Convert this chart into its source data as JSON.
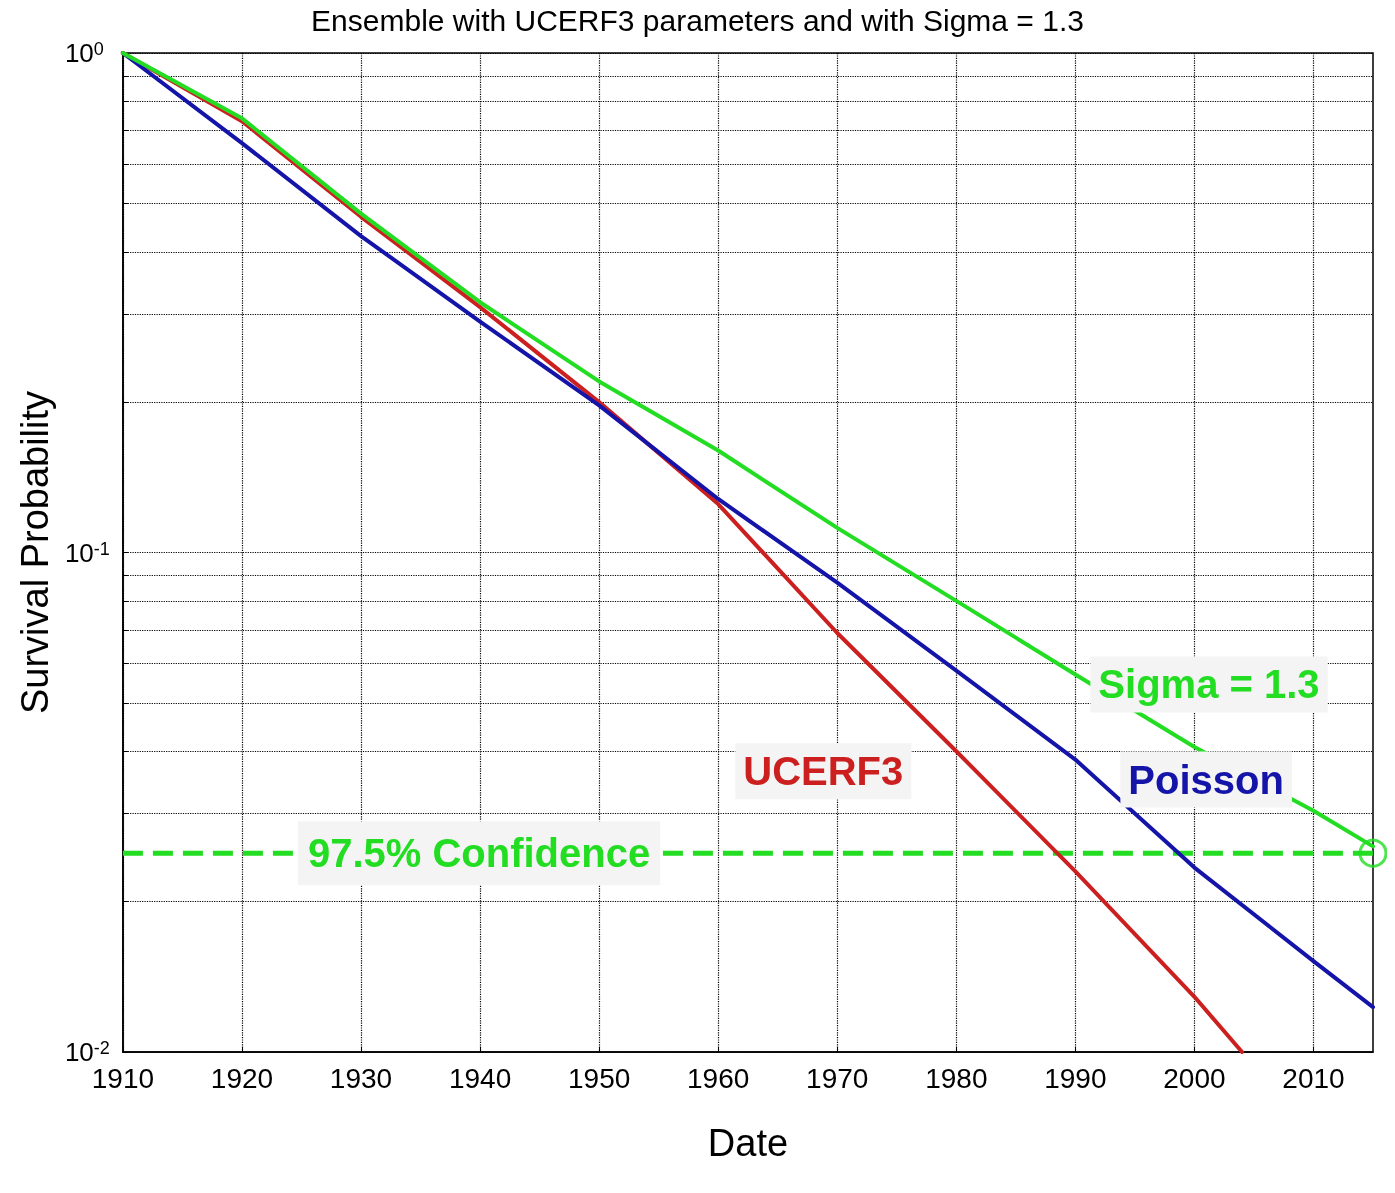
{
  "chart_data": {
    "type": "line",
    "title": "Ensemble with UCERF3 parameters and with Sigma = 1.3",
    "xlabel": "Date",
    "ylabel": "Survival Probability",
    "xlim": [
      1910,
      2015
    ],
    "xticks": [
      1910,
      1920,
      1930,
      1940,
      1950,
      1960,
      1970,
      1980,
      1990,
      2000,
      2010
    ],
    "ylim": [
      0.01,
      1
    ],
    "log": "y",
    "grid": true,
    "line_style": "solid",
    "marker": "none",
    "yticks": [
      {
        "value": 0.01,
        "label": "10$^{-2}$"
      },
      {
        "value": 0.02,
        "label": null
      },
      {
        "value": 0.03,
        "label": null
      },
      {
        "value": 0.04,
        "label": null
      },
      {
        "value": 0.05,
        "label": null
      },
      {
        "value": 0.06,
        "label": null
      },
      {
        "value": 0.07,
        "label": null
      },
      {
        "value": 0.08,
        "label": null
      },
      {
        "value": 0.09,
        "label": null
      },
      {
        "value": 0.1,
        "label": "10$^{-1}$"
      },
      {
        "value": 0.2,
        "label": null
      },
      {
        "value": 0.3,
        "label": null
      },
      {
        "value": 0.4,
        "label": null
      },
      {
        "value": 0.5,
        "label": null
      },
      {
        "value": 0.6,
        "label": null
      },
      {
        "value": 0.7,
        "label": null
      },
      {
        "value": 0.8,
        "label": null
      },
      {
        "value": 0.9,
        "label": null
      },
      {
        "value": 1,
        "label": "10$^{0}$"
      }
    ],
    "series": [
      {
        "name": "UCERF3",
        "color": "#cc1f1f",
        "x": [
          1910,
          1920,
          1930,
          1940,
          1950,
          1960,
          1970,
          1980,
          1990,
          2000,
          2004
        ],
        "values": [
          1,
          0.73,
          0.47,
          0.31,
          0.2,
          0.125,
          0.069,
          0.04,
          0.023,
          0.0129,
          0.01
        ]
      },
      {
        "name": "Poisson",
        "color": "#1414a8",
        "x": [
          1910,
          1920,
          1930,
          1940,
          1950,
          1960,
          1970,
          1980,
          1990,
          2000,
          2010,
          2015
        ],
        "values": [
          1,
          0.66,
          0.43,
          0.29,
          0.197,
          0.128,
          0.087,
          0.058,
          0.0385,
          0.0234,
          0.0152,
          0.0123
        ]
      },
      {
        "name": "Sigma = 1.3",
        "color": "#22dd22",
        "x": [
          1910,
          1920,
          1930,
          1940,
          1950,
          1960,
          1970,
          1980,
          1990,
          2000,
          2010,
          2015
        ],
        "values": [
          1,
          0.74,
          0.477,
          0.317,
          0.22,
          0.16,
          0.112,
          0.08,
          0.057,
          0.0408,
          0.0304,
          0.0258
        ]
      },
      {
        "type": "scatter",
        "marker": "circle",
        "color": "#22dd22",
        "x": [
          2015
        ],
        "values": [
          0.025
        ]
      }
    ],
    "ref_lines": [
      {
        "axis": "y",
        "value": 0.025,
        "label": "97.5% Confidence",
        "color": "#22dd22",
        "line_style": "dashed"
      }
    ]
  }
}
